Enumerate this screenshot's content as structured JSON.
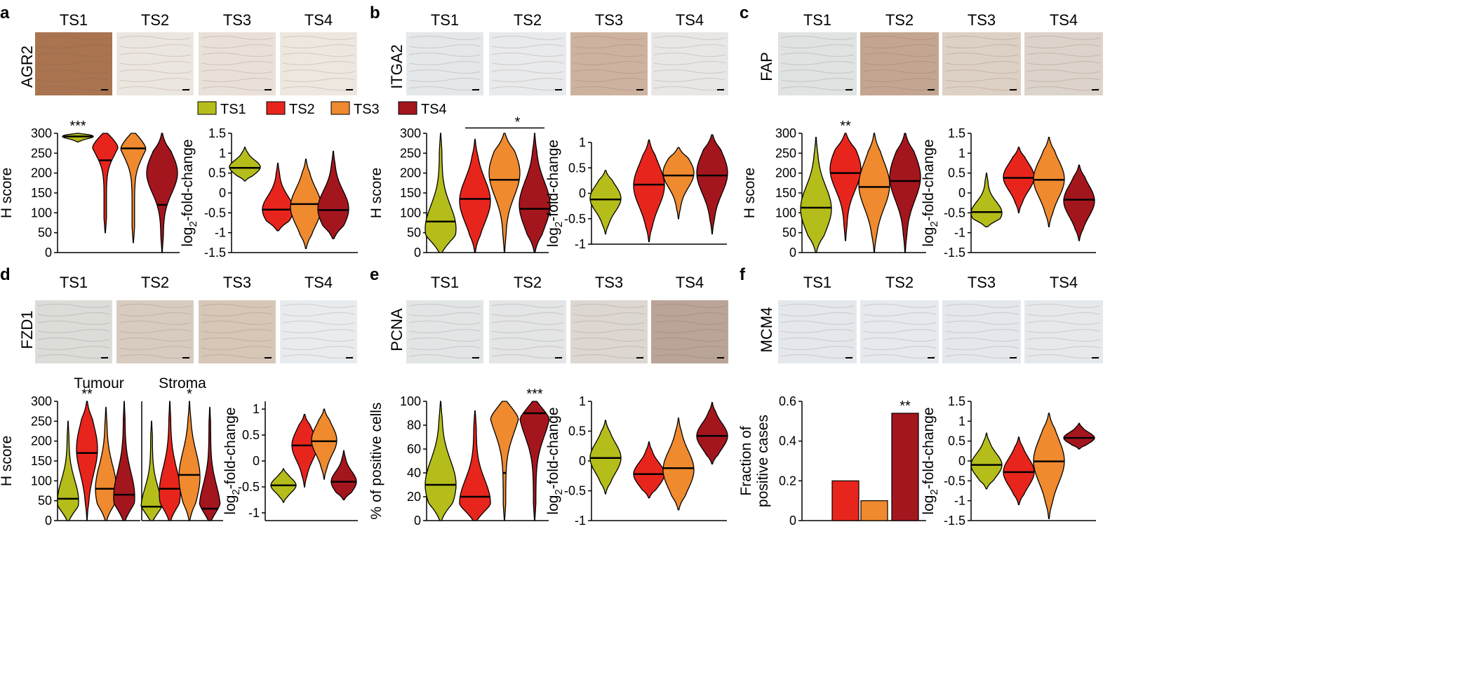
{
  "colors": {
    "TS1": "#b5bd1b",
    "TS2": "#e8251c",
    "TS3": "#ef8a2f",
    "TS4": "#a4161e"
  },
  "legend": [
    "TS1",
    "TS2",
    "TS3",
    "TS4"
  ],
  "scale_bar_icon": "scale-bar",
  "panels": [
    {
      "label": "a",
      "gene": "AGR2",
      "samples": [
        "TS1",
        "TS2",
        "TS3",
        "TS4"
      ],
      "tiles": [
        "#a9744f",
        "#ece6e1",
        "#e9e1d9",
        "#eee7e0"
      ]
    },
    {
      "label": "b",
      "gene": "ITGA2",
      "samples": [
        "TS1",
        "TS2",
        "TS3",
        "TS4"
      ],
      "tiles": [
        "#e4e8ea",
        "#e8eaec",
        "#cdb39f",
        "#e8e7e6"
      ]
    },
    {
      "label": "c",
      "gene": "FAP",
      "samples": [
        "TS1",
        "TS2",
        "TS3",
        "TS4"
      ],
      "tiles": [
        "#dfe3e2",
        "#c3a591",
        "#ddd0c4",
        "#dcd3ca"
      ]
    },
    {
      "label": "d",
      "gene": "FZD1",
      "samples": [
        "TS1",
        "TS2",
        "TS3",
        "TS4"
      ],
      "tiles": [
        "#dcdcd9",
        "#d8ccc0",
        "#d6c7b7",
        "#e9ecee"
      ]
    },
    {
      "label": "e",
      "gene": "PCNA",
      "samples": [
        "TS1",
        "TS2",
        "TS3",
        "TS4"
      ],
      "tiles": [
        "#e2e5e6",
        "#e3e5e6",
        "#ddd7d1",
        "#b9a497"
      ]
    },
    {
      "label": "f",
      "gene": "MCM4",
      "samples": [
        "TS1",
        "TS2",
        "TS3",
        "TS4"
      ],
      "tiles": [
        "#e4e8ec",
        "#e6e9ed",
        "#e4e8ec",
        "#e6e9ec"
      ]
    }
  ],
  "subtitles": {
    "tumour": "Tumour",
    "stroma": "Stroma"
  },
  "chart_data": [
    {
      "id": "a-h",
      "panel": "a",
      "type": "violin",
      "ylabel": "H score",
      "ylim": [
        0,
        300
      ],
      "ticks": [
        0,
        50,
        100,
        150,
        200,
        250,
        300
      ],
      "categories": [
        "TS1",
        "TS2",
        "TS3",
        "TS4"
      ],
      "series": [
        {
          "name": "TS1",
          "min": 278,
          "max": 300,
          "median": 292,
          "mode": 292,
          "width": 0.9
        },
        {
          "name": "TS2",
          "min": 50,
          "max": 300,
          "median": 232,
          "mode": 290,
          "width": 0.6
        },
        {
          "name": "TS3",
          "min": 25,
          "max": 300,
          "median": 262,
          "mode": 290,
          "width": 0.6
        },
        {
          "name": "TS4",
          "min": 0,
          "max": 300,
          "median": 120,
          "mode": 200,
          "width": 0.6
        }
      ],
      "annotations": [
        {
          "category": "TS1",
          "text": "***",
          "value": 300
        }
      ]
    },
    {
      "id": "a-fc",
      "panel": "a",
      "type": "violin",
      "ylabel": "log2-fold-change",
      "ylim": [
        -1.5,
        1.5
      ],
      "ticks": [
        -1.5,
        -1,
        -0.5,
        0,
        0.5,
        1,
        1.5
      ],
      "categories": [
        "TS1",
        "TS2",
        "TS3",
        "TS4"
      ],
      "series": [
        {
          "name": "TS1",
          "min": 0.3,
          "max": 1.15,
          "median": 0.63,
          "mode": 0.65,
          "width": 0.75
        },
        {
          "name": "TS2",
          "min": -0.95,
          "max": 0.75,
          "median": -0.42,
          "mode": -0.42,
          "width": 0.75
        },
        {
          "name": "TS3",
          "min": -1.4,
          "max": 0.85,
          "median": -0.28,
          "mode": -0.35,
          "width": 0.75
        },
        {
          "name": "TS4",
          "min": -1.15,
          "max": 1.05,
          "median": -0.43,
          "mode": -0.4,
          "width": 0.75
        }
      ],
      "annotations": []
    },
    {
      "id": "b-h",
      "panel": "b",
      "type": "violin",
      "ylabel": "H score",
      "ylim": [
        0,
        300
      ],
      "ticks": [
        0,
        50,
        100,
        150,
        200,
        250,
        300
      ],
      "categories": [
        "TS1",
        "TS2",
        "TS3",
        "TS4"
      ],
      "series": [
        {
          "name": "TS1",
          "min": 0,
          "max": 300,
          "median": 78,
          "mode": 60,
          "width": 0.7
        },
        {
          "name": "TS2",
          "min": 0,
          "max": 285,
          "median": 135,
          "mode": 130,
          "width": 0.7
        },
        {
          "name": "TS3",
          "min": 0,
          "max": 300,
          "median": 183,
          "mode": 200,
          "width": 0.7
        },
        {
          "name": "TS4",
          "min": 0,
          "max": 300,
          "median": 110,
          "mode": 120,
          "width": 0.7
        }
      ],
      "annotations": [
        {
          "text": "*",
          "from": "TS2",
          "to": "TS4",
          "value": 310
        }
      ]
    },
    {
      "id": "b-fc",
      "panel": "b",
      "type": "violin",
      "ylabel": "log2-fold-change",
      "ylim": [
        -1,
        1
      ],
      "ticks": [
        -1,
        -0.5,
        0,
        0.5,
        1
      ],
      "categories": [
        "TS1",
        "TS2",
        "TS3",
        "TS4"
      ],
      "series": [
        {
          "name": "TS1",
          "min": -0.8,
          "max": 0.45,
          "median": -0.12,
          "mode": -0.1,
          "width": 0.75
        },
        {
          "name": "TS2",
          "min": -0.95,
          "max": 1.05,
          "median": 0.17,
          "mode": 0.15,
          "width": 0.75
        },
        {
          "name": "TS3",
          "min": -0.5,
          "max": 0.9,
          "median": 0.35,
          "mode": 0.4,
          "width": 0.75
        },
        {
          "name": "TS4",
          "min": -0.8,
          "max": 1.15,
          "median": 0.35,
          "mode": 0.4,
          "width": 0.75
        }
      ],
      "annotations": []
    },
    {
      "id": "c-h",
      "panel": "c",
      "type": "violin",
      "ylabel": "H score",
      "ylim": [
        0,
        300
      ],
      "ticks": [
        0,
        50,
        100,
        150,
        200,
        250,
        300
      ],
      "categories": [
        "TS1",
        "TS2",
        "TS3",
        "TS4"
      ],
      "series": [
        {
          "name": "TS1",
          "min": 0,
          "max": 290,
          "median": 113,
          "mode": 110,
          "width": 0.7
        },
        {
          "name": "TS2",
          "min": 30,
          "max": 300,
          "median": 200,
          "mode": 210,
          "width": 0.7
        },
        {
          "name": "TS3",
          "min": 0,
          "max": 300,
          "median": 165,
          "mode": 170,
          "width": 0.7
        },
        {
          "name": "TS4",
          "min": 0,
          "max": 300,
          "median": 180,
          "mode": 190,
          "width": 0.7
        }
      ],
      "annotations": [
        {
          "category": "TS2",
          "text": "**",
          "value": 300
        }
      ]
    },
    {
      "id": "c-fc",
      "panel": "c",
      "type": "violin",
      "ylabel": "log2-fold-change",
      "ylim": [
        -1.5,
        1.5
      ],
      "ticks": [
        -1.5,
        -1,
        -0.5,
        0,
        0.5,
        1,
        1.5
      ],
      "categories": [
        "TS1",
        "TS2",
        "TS3",
        "TS4"
      ],
      "series": [
        {
          "name": "TS1",
          "min": -0.85,
          "max": 0.5,
          "median": -0.48,
          "mode": -0.5,
          "width": 0.75
        },
        {
          "name": "TS2",
          "min": -0.5,
          "max": 1.15,
          "median": 0.38,
          "mode": 0.4,
          "width": 0.75
        },
        {
          "name": "TS3",
          "min": -0.85,
          "max": 1.4,
          "median": 0.33,
          "mode": 0.35,
          "width": 0.75
        },
        {
          "name": "TS4",
          "min": -1.2,
          "max": 0.7,
          "median": -0.17,
          "mode": -0.2,
          "width": 0.75
        }
      ],
      "annotations": []
    },
    {
      "id": "d-tumour",
      "panel": "d",
      "type": "violin",
      "ylabel": "H score",
      "ylim": [
        0,
        300
      ],
      "ticks": [
        0,
        50,
        100,
        150,
        200,
        250,
        300
      ],
      "categories": [
        "TS1",
        "TS2",
        "TS3",
        "TS4"
      ],
      "series": [
        {
          "name": "TS1",
          "min": 0,
          "max": 250,
          "median": 55,
          "mode": 50,
          "width": 0.75
        },
        {
          "name": "TS2",
          "min": 0,
          "max": 300,
          "median": 170,
          "mode": 180,
          "width": 0.75
        },
        {
          "name": "TS3",
          "min": 0,
          "max": 285,
          "median": 80,
          "mode": 80,
          "width": 0.75
        },
        {
          "name": "TS4",
          "min": 0,
          "max": 300,
          "median": 65,
          "mode": 60,
          "width": 0.75
        }
      ],
      "annotations": [
        {
          "category": "TS2",
          "text": "**",
          "value": 300
        }
      ]
    },
    {
      "id": "d-stroma",
      "panel": "d",
      "type": "violin",
      "ylabel": "",
      "ylim": [
        0,
        300
      ],
      "ticks": [],
      "categories": [
        "TS1",
        "TS2",
        "TS3",
        "TS4"
      ],
      "series": [
        {
          "name": "TS1",
          "min": 0,
          "max": 250,
          "median": 35,
          "mode": 30,
          "width": 0.75
        },
        {
          "name": "TS2",
          "min": 0,
          "max": 300,
          "median": 80,
          "mode": 70,
          "width": 0.75
        },
        {
          "name": "TS3",
          "min": 0,
          "max": 300,
          "median": 115,
          "mode": 110,
          "width": 0.75
        },
        {
          "name": "TS4",
          "min": 0,
          "max": 285,
          "median": 30,
          "mode": 30,
          "width": 0.75
        }
      ],
      "annotations": [
        {
          "category": "TS3",
          "text": "*",
          "value": 300
        }
      ]
    },
    {
      "id": "d-fc",
      "panel": "d",
      "type": "violin",
      "ylabel": "log2-fold-change",
      "ylim": [
        -1.15,
        1.15
      ],
      "ticks": [
        -1,
        -0.5,
        0,
        0.5,
        1
      ],
      "categories": [
        "TS1",
        "TS2",
        "TS3",
        "TS4"
      ],
      "series": [
        {
          "name": "TS1",
          "min": -0.8,
          "max": -0.15,
          "median": -0.47,
          "mode": -0.47,
          "width": 0.75
        },
        {
          "name": "TS2",
          "min": -0.5,
          "max": 0.9,
          "median": 0.3,
          "mode": 0.3,
          "width": 0.75
        },
        {
          "name": "TS3",
          "min": -0.35,
          "max": 1.0,
          "median": 0.38,
          "mode": 0.4,
          "width": 0.75
        },
        {
          "name": "TS4",
          "min": -0.75,
          "max": 0.2,
          "median": -0.4,
          "mode": -0.4,
          "width": 0.75
        }
      ],
      "annotations": []
    },
    {
      "id": "e-pct",
      "panel": "e",
      "type": "violin",
      "ylabel": "% of positive cells",
      "ylim": [
        0,
        100
      ],
      "ticks": [
        0,
        20,
        40,
        60,
        80,
        100
      ],
      "categories": [
        "TS1",
        "TS2",
        "TS3",
        "TS4"
      ],
      "series": [
        {
          "name": "TS1",
          "min": 0,
          "max": 100,
          "median": 30,
          "mode": 30,
          "width": 0.75
        },
        {
          "name": "TS2",
          "min": 0,
          "max": 92,
          "median": 20,
          "mode": 15,
          "width": 0.75
        },
        {
          "name": "TS3",
          "min": 0,
          "max": 100,
          "median": 40,
          "mode": 95,
          "width": 0.75
        },
        {
          "name": "TS4",
          "min": 0,
          "max": 100,
          "median": 90,
          "mode": 92,
          "width": 0.75
        }
      ],
      "annotations": [
        {
          "category": "TS4",
          "text": "***",
          "value": 100
        }
      ]
    },
    {
      "id": "e-fc",
      "panel": "e",
      "type": "violin",
      "ylabel": "log2-fold-change",
      "ylim": [
        -1,
        1
      ],
      "ticks": [
        -1,
        -0.5,
        0,
        0.5,
        1
      ],
      "categories": [
        "TS1",
        "TS2",
        "TS3",
        "TS4"
      ],
      "series": [
        {
          "name": "TS1",
          "min": -0.55,
          "max": 0.68,
          "median": 0.05,
          "mode": 0.05,
          "width": 0.75
        },
        {
          "name": "TS2",
          "min": -0.62,
          "max": 0.32,
          "median": -0.22,
          "mode": -0.22,
          "width": 0.75
        },
        {
          "name": "TS3",
          "min": -0.82,
          "max": 0.72,
          "median": -0.12,
          "mode": -0.15,
          "width": 0.75
        },
        {
          "name": "TS4",
          "min": -0.05,
          "max": 0.98,
          "median": 0.42,
          "mode": 0.42,
          "width": 0.75
        }
      ],
      "annotations": []
    },
    {
      "id": "f-frac",
      "panel": "f",
      "type": "bar",
      "ylabel": [
        "Fraction of",
        "positive cases"
      ],
      "ylim": [
        0,
        0.6
      ],
      "ticks": [
        0,
        0.2,
        0.4,
        0.6
      ],
      "categories": [
        "TS1",
        "TS2",
        "TS3",
        "TS4"
      ],
      "values": [
        0,
        0.2,
        0.1,
        0.54
      ],
      "annotations": [
        {
          "category": "TS4",
          "text": "**",
          "value": 0.54
        }
      ]
    },
    {
      "id": "f-fc",
      "panel": "f",
      "type": "violin",
      "ylabel": "log2-fold-change",
      "ylim": [
        -1.5,
        1.5
      ],
      "ticks": [
        -1.5,
        -1,
        -0.5,
        0,
        0.5,
        1,
        1.5
      ],
      "categories": [
        "TS1",
        "TS2",
        "TS3",
        "TS4"
      ],
      "series": [
        {
          "name": "TS1",
          "min": -0.7,
          "max": 0.7,
          "median": -0.1,
          "mode": -0.1,
          "width": 0.75
        },
        {
          "name": "TS2",
          "min": -1.1,
          "max": 0.6,
          "median": -0.28,
          "mode": -0.28,
          "width": 0.75
        },
        {
          "name": "TS3",
          "min": -1.45,
          "max": 1.2,
          "median": -0.01,
          "mode": 0.0,
          "width": 0.75
        },
        {
          "name": "TS4",
          "min": 0.3,
          "max": 0.95,
          "median": 0.58,
          "mode": 0.58,
          "width": 0.75
        }
      ],
      "annotations": []
    }
  ]
}
